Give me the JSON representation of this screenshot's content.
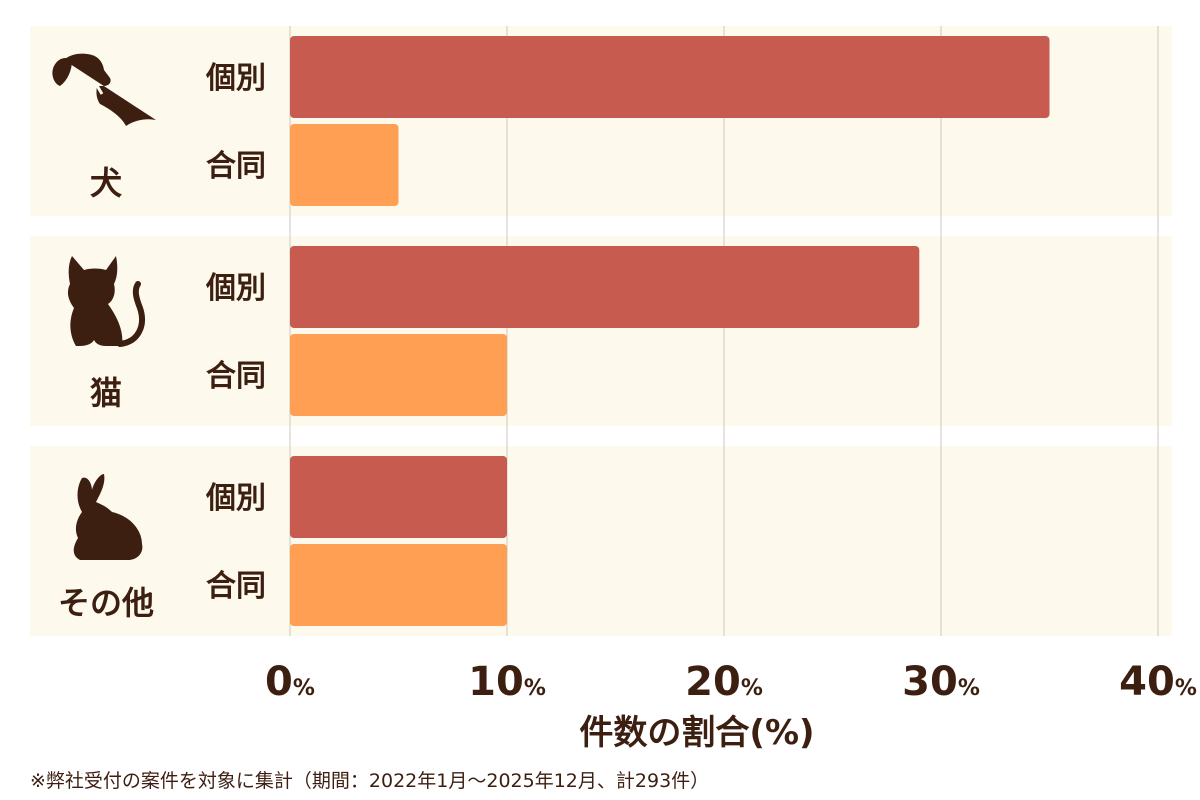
{
  "chart_data": {
    "type": "bar",
    "orientation": "horizontal",
    "title": "",
    "xlabel": "件数の割合(%)",
    "ylabel": "",
    "xlim": [
      0,
      40
    ],
    "x_ticks": [
      0,
      10,
      20,
      30,
      40
    ],
    "tick_suffix": "%",
    "grid": true,
    "categories": [
      {
        "name": "犬",
        "icon": "dog-icon"
      },
      {
        "name": "猫",
        "icon": "cat-icon"
      },
      {
        "name": "その他",
        "icon": "rabbit-icon"
      }
    ],
    "series": [
      {
        "name": "個別",
        "color": "#c75b4f",
        "values": [
          35,
          29,
          10
        ]
      },
      {
        "name": "合同",
        "color": "#ff9f53",
        "values": [
          5,
          10,
          10
        ]
      }
    ]
  },
  "footnote": "※弊社受付の案件を対象に集計（期間：2022年1月〜2025年12月、計293件）",
  "colors": {
    "panel_bg": "#fdf9ec",
    "grid": "#cfc9bd",
    "text": "#3d1f12",
    "icon": "#3d1f12"
  }
}
